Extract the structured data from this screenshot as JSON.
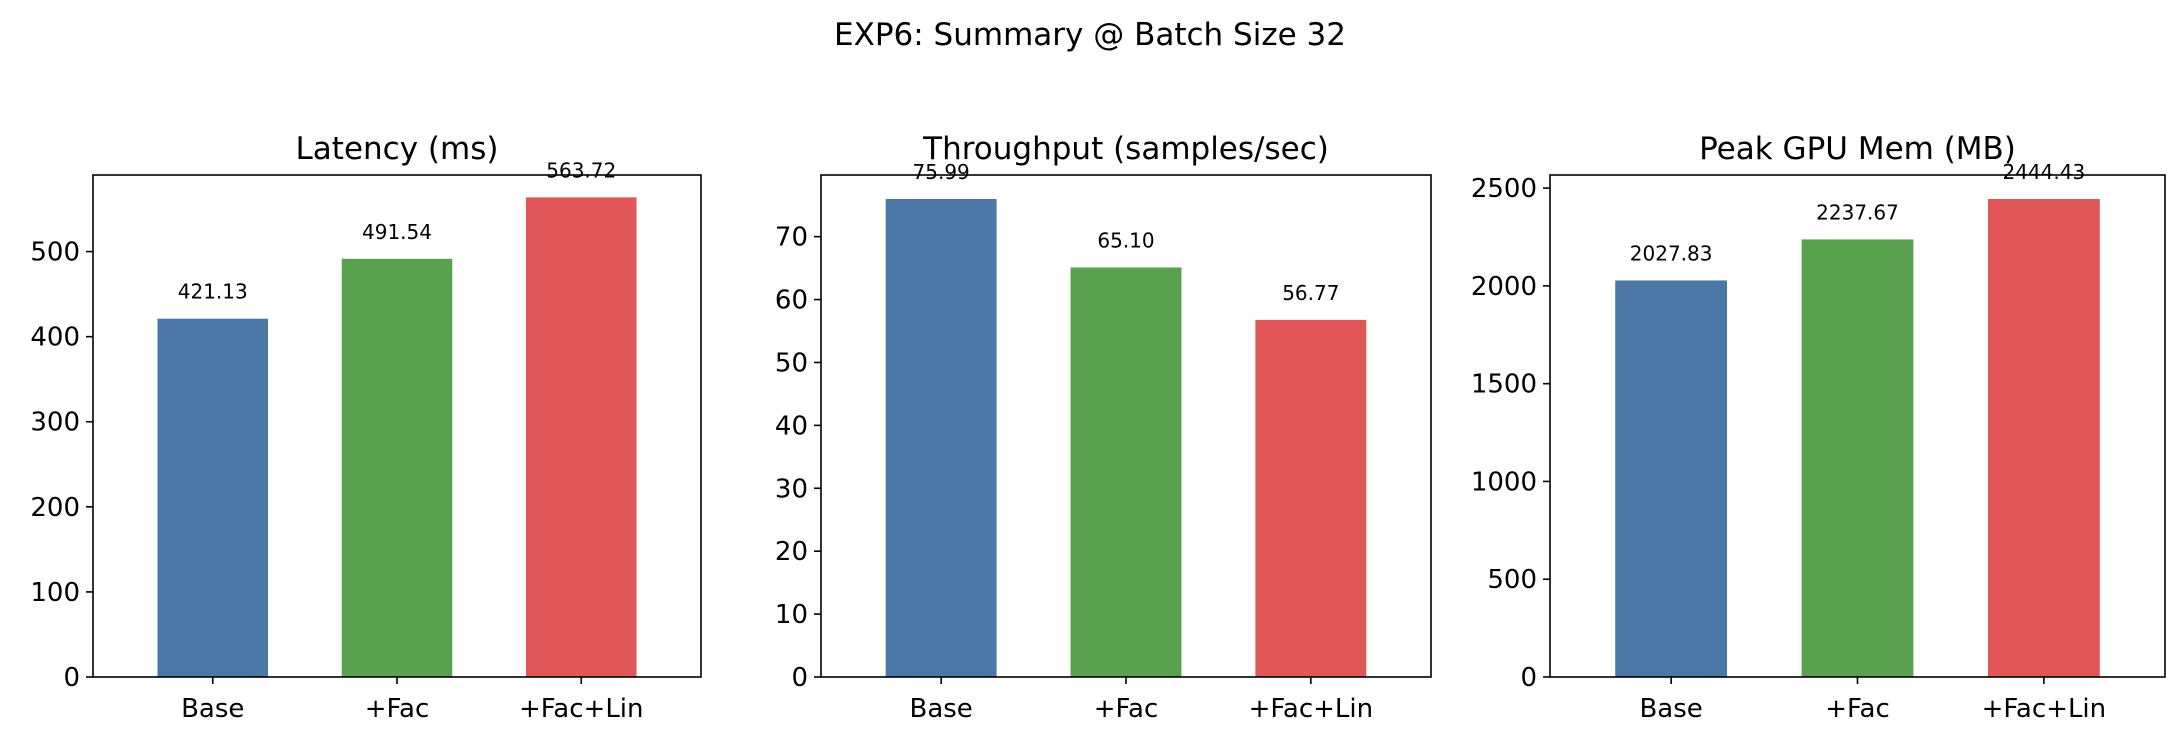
{
  "figure": {
    "title": "EXP6: Summary @ Batch Size 32"
  },
  "chart_data": [
    {
      "type": "bar",
      "title": "Latency (ms)",
      "categories": [
        "Base",
        "+Fac",
        "+Fac+Lin"
      ],
      "values": [
        421.13,
        491.54,
        563.72
      ],
      "value_labels": [
        "421.13",
        "491.54",
        "563.72"
      ],
      "colors": [
        "#4c78a8",
        "#59a14f",
        "#e15759"
      ],
      "ylim": [
        0,
        590
      ],
      "yticks": [
        0,
        100,
        200,
        300,
        400,
        500
      ],
      "xlabel": "",
      "ylabel": "",
      "grid": false,
      "legend": false
    },
    {
      "type": "bar",
      "title": "Throughput (samples/sec)",
      "categories": [
        "Base",
        "+Fac",
        "+Fac+Lin"
      ],
      "values": [
        75.99,
        65.1,
        56.77
      ],
      "value_labels": [
        "75.99",
        "65.10",
        "56.77"
      ],
      "colors": [
        "#4c78a8",
        "#59a14f",
        "#e15759"
      ],
      "ylim": [
        0,
        79.8
      ],
      "yticks": [
        0,
        10,
        20,
        30,
        40,
        50,
        60,
        70
      ],
      "xlabel": "",
      "ylabel": "",
      "grid": false,
      "legend": false
    },
    {
      "type": "bar",
      "title": "Peak GPU Mem (MB)",
      "categories": [
        "Base",
        "+Fac",
        "+Fac+Lin"
      ],
      "values": [
        2027.83,
        2237.67,
        2444.43
      ],
      "value_labels": [
        "2027.83",
        "2237.67",
        "2444.43"
      ],
      "colors": [
        "#4c78a8",
        "#59a14f",
        "#e15759"
      ],
      "ylim": [
        0,
        2567
      ],
      "yticks": [
        0,
        500,
        1000,
        1500,
        2000,
        2500
      ],
      "xlabel": "",
      "ylabel": "",
      "grid": false,
      "legend": false
    }
  ]
}
